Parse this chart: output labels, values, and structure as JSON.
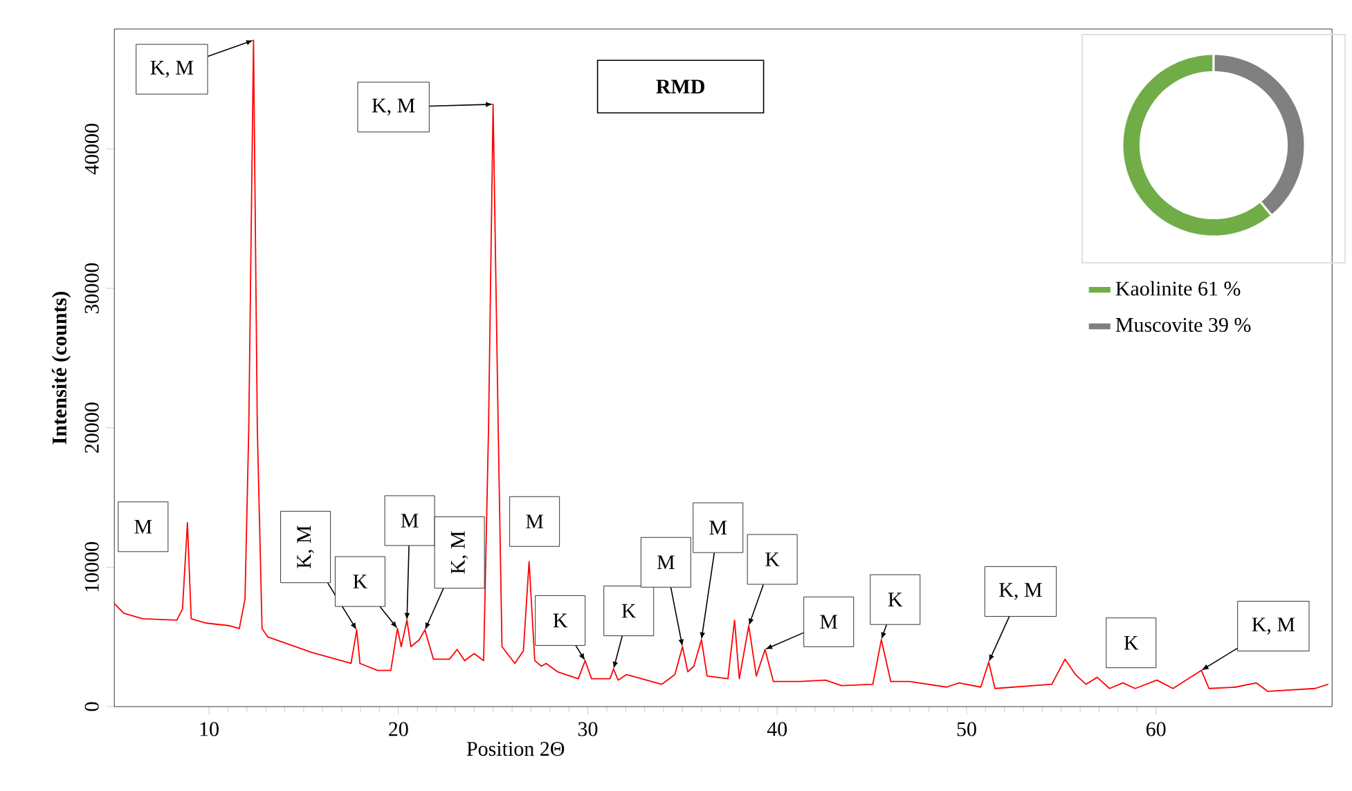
{
  "chart_data": [
    {
      "type": "line",
      "title": "RMD",
      "xlabel": "Position 2Θ",
      "ylabel": "Intensité (counts)",
      "color": "#ff0000",
      "x": [
        5.0,
        5.5,
        6.5,
        8.3,
        8.6,
        8.86,
        9.06,
        9.8,
        11.1,
        11.6,
        11.9,
        12.1,
        12.35,
        12.55,
        12.8,
        13.1,
        15.4,
        17.5,
        17.8,
        17.97,
        18.9,
        19.6,
        19.95,
        20.15,
        20.45,
        20.66,
        21.1,
        21.4,
        21.85,
        22.7,
        23.1,
        23.5,
        24.0,
        24.5,
        24.76,
        25.0,
        25.27,
        25.47,
        26.15,
        26.6,
        26.9,
        27.2,
        27.55,
        27.8,
        28.4,
        29.5,
        29.86,
        30.2,
        31.17,
        31.36,
        31.6,
        32.05,
        33.9,
        34.6,
        35.0,
        35.28,
        35.6,
        36.0,
        36.3,
        37.4,
        37.75,
        38.0,
        38.5,
        38.9,
        39.36,
        39.8,
        41.2,
        42.55,
        43.4,
        45.05,
        45.5,
        46.0,
        47.0,
        48.95,
        49.6,
        50.75,
        51.17,
        51.5,
        54.5,
        55.2,
        55.75,
        56.3,
        56.9,
        57.55,
        58.25,
        58.9,
        60.05,
        60.9,
        62.4,
        62.8,
        64.2,
        65.3,
        65.9,
        68.4,
        69.1
      ],
      "values": [
        7400,
        6700,
        6300,
        6200,
        7000,
        13200,
        6300,
        6000,
        5800,
        5600,
        7700,
        20000,
        47800,
        20000,
        5600,
        5000,
        3900,
        3100,
        5500,
        3100,
        2600,
        2600,
        5600,
        4300,
        6200,
        4300,
        4800,
        5500,
        3400,
        3400,
        4100,
        3300,
        3800,
        3300,
        20000,
        43200,
        20000,
        4300,
        3100,
        4000,
        10400,
        3300,
        2900,
        3100,
        2500,
        2000,
        3300,
        2000,
        2000,
        2700,
        1900,
        2300,
        1600,
        2300,
        4300,
        2500,
        2900,
        4800,
        2200,
        2000,
        6200,
        2000,
        5800,
        2200,
        4100,
        1800,
        1800,
        1900,
        1500,
        1600,
        4800,
        1800,
        1800,
        1400,
        1700,
        1400,
        3200,
        1300,
        1600,
        3400,
        2300,
        1600,
        2100,
        1300,
        1700,
        1300,
        1900,
        1300,
        2600,
        1300,
        1400,
        1700,
        1100,
        1300,
        1600
      ],
      "xlim": [
        5,
        69.3
      ],
      "ylim": [
        0,
        48600
      ],
      "xticks": [
        10,
        20,
        30,
        40,
        50,
        60
      ],
      "yticks": [
        0,
        10000,
        20000,
        30000,
        40000
      ],
      "annotations": [
        {
          "text": "K, M",
          "x": 12.35,
          "y": 47800
        },
        {
          "text": "K, M",
          "x": 25.0,
          "y": 43200
        },
        {
          "text": "M",
          "x": 8.86,
          "y": 13200
        },
        {
          "text": "K, M",
          "x": 17.8,
          "y": 5500
        },
        {
          "text": "K",
          "x": 19.95,
          "y": 5600
        },
        {
          "text": "M",
          "x": 20.45,
          "y": 6200
        },
        {
          "text": "K, M",
          "x": 21.4,
          "y": 5500
        },
        {
          "text": "M",
          "x": 26.9,
          "y": 10400
        },
        {
          "text": "K",
          "x": 29.86,
          "y": 3300
        },
        {
          "text": "K",
          "x": 31.36,
          "y": 2700
        },
        {
          "text": "M",
          "x": 35.0,
          "y": 4300
        },
        {
          "text": "M",
          "x": 36.0,
          "y": 4800
        },
        {
          "text": "K",
          "x": 38.5,
          "y": 5800
        },
        {
          "text": "M",
          "x": 39.36,
          "y": 4100
        },
        {
          "text": "K",
          "x": 45.5,
          "y": 4800
        },
        {
          "text": "K, M",
          "x": 51.17,
          "y": 3200
        },
        {
          "text": "K",
          "x": 58.25,
          "y": 1700
        },
        {
          "text": "K, M",
          "x": 62.4,
          "y": 2600
        }
      ]
    },
    {
      "type": "donut",
      "categories": [
        "Kaolinite 61 %",
        "Muscovite 39 %"
      ],
      "values": [
        61,
        39
      ],
      "colors": [
        "#70ad47",
        "#808080"
      ],
      "legend": "bottom"
    }
  ]
}
